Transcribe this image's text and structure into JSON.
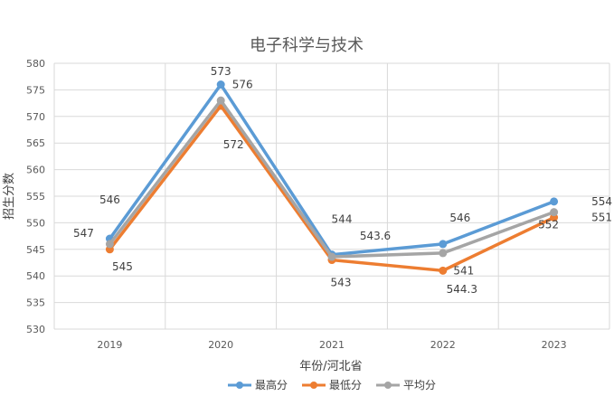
{
  "chart_data": {
    "type": "line",
    "title": "电子科学与技术",
    "xlabel": "年份/河北省",
    "ylabel": "招生分数",
    "categories": [
      "2019",
      "2020",
      "2021",
      "2022",
      "2023"
    ],
    "ylim": [
      530,
      580
    ],
    "yticks": [
      530,
      535,
      540,
      545,
      550,
      555,
      560,
      565,
      570,
      575,
      580
    ],
    "grid": true,
    "legend_position": "bottom",
    "series": [
      {
        "name": "最高分",
        "color": "#5B9BD5",
        "values": [
          547,
          576,
          544,
          546,
          554
        ]
      },
      {
        "name": "最低分",
        "color": "#ED7D31",
        "values": [
          545,
          572,
          543,
          541,
          551
        ]
      },
      {
        "name": "平均分",
        "color": "#A5A5A5",
        "values": [
          546,
          573,
          543.6,
          544.3,
          552
        ]
      }
    ]
  }
}
